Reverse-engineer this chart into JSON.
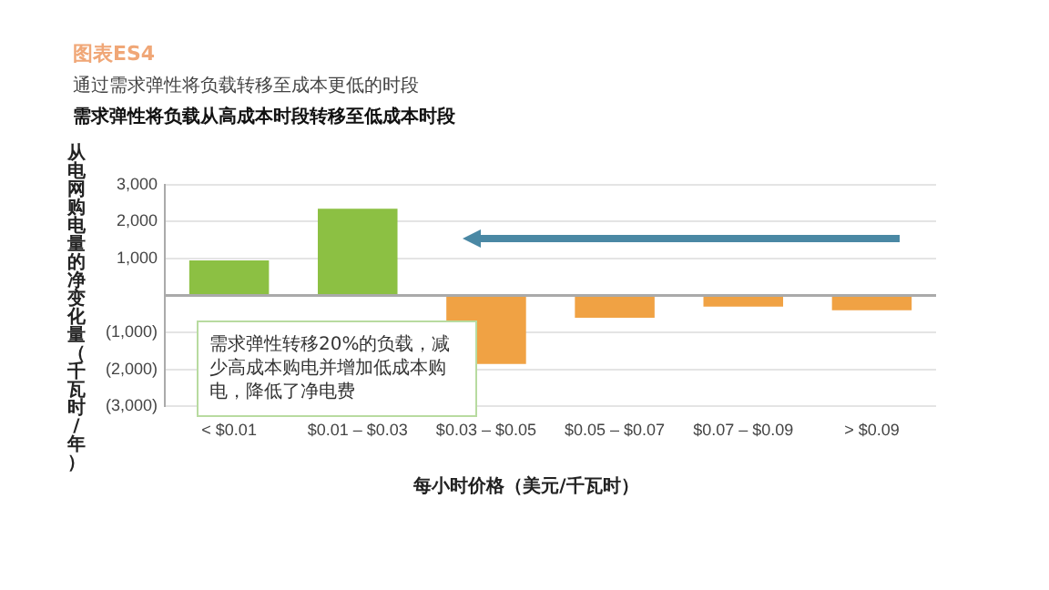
{
  "chart_data": {
    "type": "bar",
    "title": "图表ES4",
    "subtitle": "通过需求弹性将负载转移至成本更低的时段",
    "annotations": [
      "需求弹性将负载从高成本时段转移至低成本时段",
      "需求弹性转移20%的负载，减少高成本购电并增加低成本购电，降低了净电费"
    ],
    "xlabel": "每小时价格（美元/千瓦时）",
    "ylabel": "从电网购电量的净变化量（千瓦时/年）",
    "categories": [
      "< $0.01",
      "$0.01 – $0.03",
      "$0.03 – $0.05",
      "$0.05 – $0.07",
      "$0.07 – $0.09",
      "> $0.09"
    ],
    "values": [
      950,
      2350,
      -1850,
      -600,
      -300,
      -400
    ],
    "colors": [
      "#8cc043",
      "#8cc043",
      "#f0a244",
      "#f0a244",
      "#f0a244",
      "#f0a244"
    ],
    "ylim": [
      -3000,
      3000
    ],
    "yticks": [
      {
        "value": 3000,
        "label": "3,000"
      },
      {
        "value": 2000,
        "label": "2,000"
      },
      {
        "value": 1000,
        "label": "1,000"
      },
      {
        "value": 0,
        "label": null
      },
      {
        "value": -1000,
        "label": "(1,000)"
      },
      {
        "value": -2000,
        "label": "(2,000)"
      },
      {
        "value": -3000,
        "label": "(3,000)"
      }
    ],
    "grid": "y"
  }
}
